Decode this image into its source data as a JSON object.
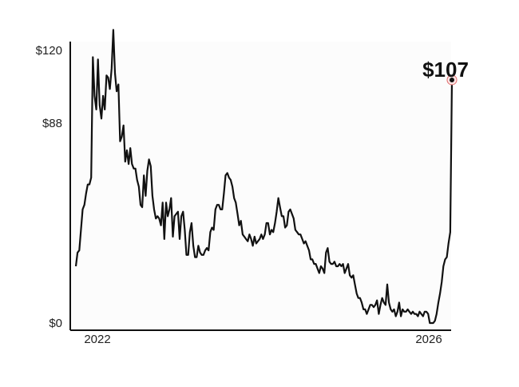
{
  "chart_data": {
    "type": "line",
    "title": "",
    "xlabel": "",
    "ylabel": "",
    "x_ticks": [
      "2022",
      "2026"
    ],
    "y_ticks": [
      "$0",
      "$88",
      "$120"
    ],
    "y_tick_values": [
      0,
      88,
      120
    ],
    "ylim": [
      0,
      122
    ],
    "grid": false,
    "callout": {
      "label": "$107",
      "value": 107
    },
    "series": [
      {
        "values": [
          25,
          31,
          32,
          41,
          50,
          52,
          57,
          61,
          61,
          64,
          117,
          100,
          94,
          116,
          96,
          90,
          100,
          94,
          109,
          108,
          103,
          112,
          129,
          110,
          102,
          105,
          80,
          82,
          87,
          71,
          76,
          70,
          77,
          70,
          68,
          68,
          63,
          60,
          52,
          51,
          65,
          56,
          67,
          72,
          69,
          56,
          50,
          46,
          47,
          46,
          43,
          53,
          37,
          53,
          47,
          50,
          55,
          38,
          47,
          48,
          49,
          37,
          47,
          49,
          41,
          30,
          30,
          40,
          44,
          34,
          29,
          29,
          34,
          31,
          30,
          30,
          32,
          33,
          32,
          40,
          42,
          41,
          50,
          52,
          52,
          50,
          50,
          57,
          65,
          66,
          64,
          63,
          60,
          55,
          53,
          48,
          43,
          45,
          39,
          38,
          37,
          36,
          39,
          37,
          34,
          38,
          35,
          36,
          37,
          39,
          37,
          39,
          44,
          44,
          39,
          41,
          40,
          44,
          49,
          55,
          51,
          47,
          47,
          42,
          43,
          49,
          50,
          48,
          46,
          41,
          40,
          39,
          39,
          37,
          35,
          36,
          34,
          32,
          28,
          28,
          26,
          26,
          24,
          22,
          25,
          24,
          22,
          31,
          33,
          27,
          26,
          26,
          27,
          25,
          25,
          26,
          25,
          26,
          22,
          24,
          26,
          21,
          20,
          21,
          17,
          13,
          11,
          11,
          9,
          6,
          6,
          4,
          6,
          8,
          8,
          7,
          8,
          10,
          4,
          8,
          11,
          9,
          8,
          17,
          9,
          6,
          5,
          6,
          3,
          5,
          9,
          3,
          6,
          5,
          5,
          6,
          5,
          4,
          5,
          4,
          4,
          3,
          5,
          4,
          3,
          5,
          5,
          4,
          0,
          0,
          0,
          1,
          4,
          9,
          13,
          18,
          25,
          28,
          29,
          35,
          40,
          107
        ]
      }
    ]
  }
}
